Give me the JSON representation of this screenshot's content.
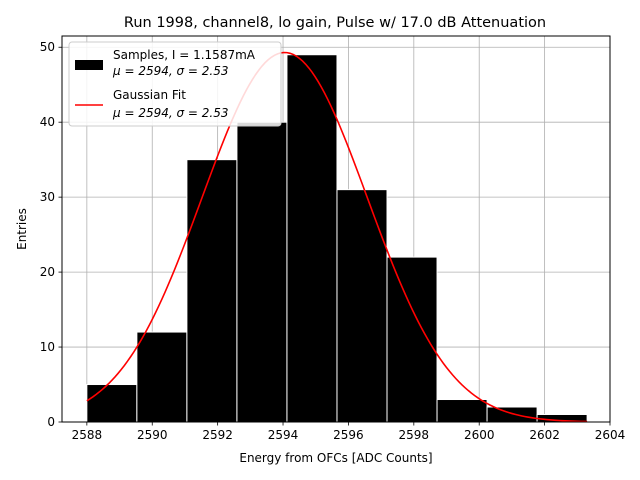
{
  "chart_data": {
    "type": "bar",
    "title": "Run 1998, channel8, lo gain, Pulse w/ 17.0 dB Attenuation",
    "xlabel": "Energy from OFCs [ADC Counts]",
    "ylabel": "Entries",
    "xlim": [
      2587.24,
      2604.0
    ],
    "ylim": [
      0,
      51.5
    ],
    "xticks": [
      2588,
      2590,
      2592,
      2594,
      2596,
      2598,
      2600,
      2602,
      2604
    ],
    "yticks": [
      0,
      10,
      20,
      30,
      40,
      50
    ],
    "grid": true,
    "legend_position": "top-left",
    "bins": [
      {
        "left": 2588.0,
        "right": 2589.53,
        "value": 5
      },
      {
        "left": 2589.53,
        "right": 2591.06,
        "value": 12
      },
      {
        "left": 2591.06,
        "right": 2592.59,
        "value": 35
      },
      {
        "left": 2592.59,
        "right": 2594.12,
        "value": 40
      },
      {
        "left": 2594.12,
        "right": 2595.65,
        "value": 49
      },
      {
        "left": 2595.65,
        "right": 2597.18,
        "value": 31
      },
      {
        "left": 2597.18,
        "right": 2598.71,
        "value": 22
      },
      {
        "left": 2598.71,
        "right": 2600.24,
        "value": 3
      },
      {
        "left": 2600.24,
        "right": 2601.77,
        "value": 2
      },
      {
        "left": 2601.77,
        "right": 2603.3,
        "value": 1
      }
    ],
    "fit": {
      "mu": 2594.05,
      "sigma": 2.53,
      "amplitude": 49.3,
      "x_start": 2588.0,
      "x_end": 2603.3
    },
    "series": [
      {
        "name": "Samples, I = 1.1587mA",
        "detail": "μ = 2594, σ = 2.53",
        "color": "#000000"
      },
      {
        "name": "Gaussian Fit",
        "detail": "μ = 2594, σ = 2.53",
        "color": "#ff0000"
      }
    ]
  }
}
